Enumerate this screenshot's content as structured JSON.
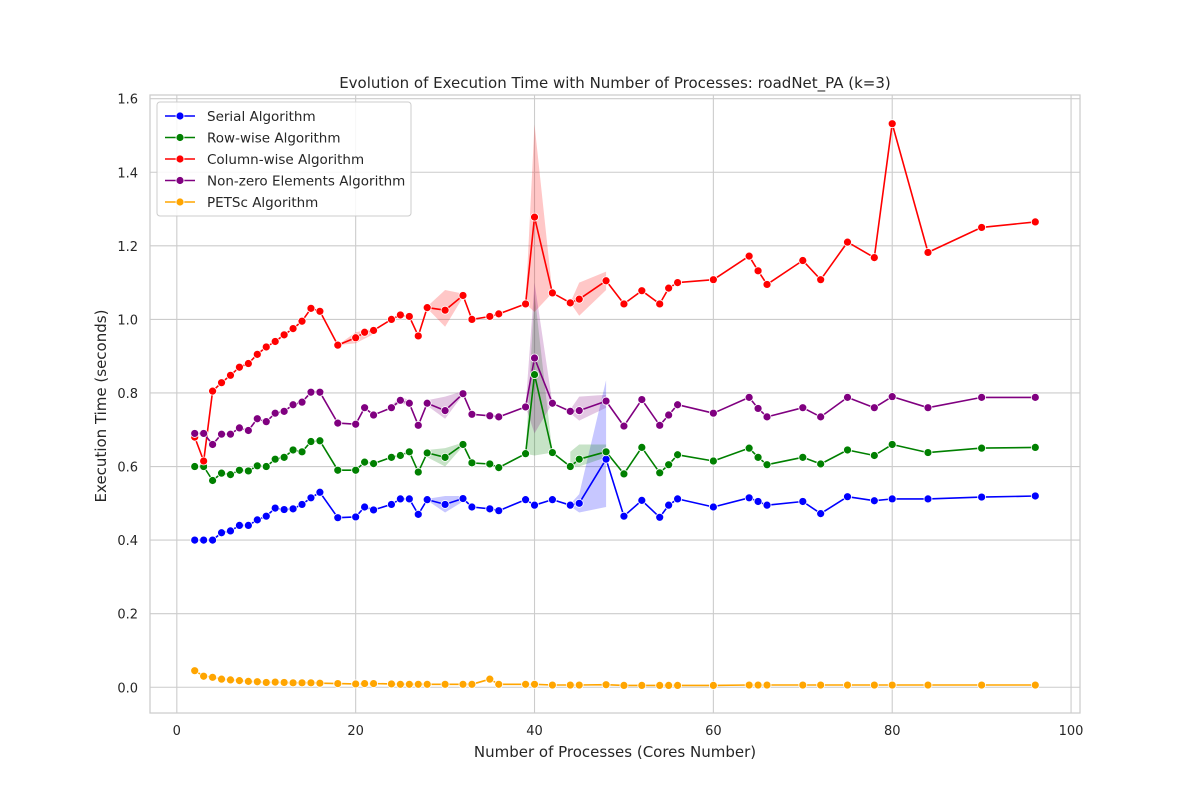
{
  "chart_data": {
    "type": "line",
    "title": "Evolution of Execution Time with Number of Processes: roadNet_PA (k=3)",
    "xlabel": "Number of Processes (Cores Number)",
    "ylabel": "Execution Time (seconds)",
    "xlim": [
      -3,
      101
    ],
    "ylim": [
      -0.07,
      1.61
    ],
    "xticks": [
      0,
      20,
      40,
      60,
      80,
      100
    ],
    "yticks": [
      0.0,
      0.2,
      0.4,
      0.6,
      0.8,
      1.0,
      1.2,
      1.4,
      1.6
    ],
    "xtick_labels": [
      "0",
      "20",
      "40",
      "60",
      "80",
      "100"
    ],
    "ytick_labels": [
      "0.0",
      "0.2",
      "0.4",
      "0.6",
      "0.8",
      "1.0",
      "1.2",
      "1.4",
      "1.6"
    ],
    "grid": true,
    "legend_position": "top-left",
    "x": [
      2,
      3,
      4,
      5,
      6,
      7,
      8,
      9,
      10,
      11,
      12,
      13,
      14,
      15,
      16,
      18,
      20,
      21,
      22,
      24,
      25,
      26,
      27,
      28,
      30,
      32,
      33,
      35,
      36,
      39,
      40,
      42,
      44,
      45,
      48,
      50,
      52,
      54,
      55,
      56,
      60,
      64,
      65,
      66,
      70,
      72,
      75,
      78,
      80,
      84,
      90,
      96
    ],
    "series": [
      {
        "name": "Serial Algorithm",
        "color": "#0000ff",
        "values": [
          0.4,
          0.4,
          0.4,
          0.42,
          0.425,
          0.44,
          0.44,
          0.455,
          0.465,
          0.487,
          0.483,
          0.485,
          0.497,
          0.515,
          0.53,
          0.461,
          0.463,
          0.49,
          0.482,
          0.497,
          0.512,
          0.512,
          0.47,
          0.51,
          0.497,
          0.513,
          0.49,
          0.485,
          0.48,
          0.51,
          0.495,
          0.51,
          0.495,
          0.5,
          0.62,
          0.465,
          0.508,
          0.462,
          0.495,
          0.512,
          0.49,
          0.515,
          0.505,
          0.495,
          0.505,
          0.472,
          0.518,
          0.507,
          0.512,
          0.512,
          0.517,
          0.52
        ],
        "bands": [
          {
            "x": [
              28,
              30,
              32
            ],
            "lower": [
              0.508,
              0.475,
              0.505
            ],
            "upper": [
              0.512,
              0.52,
              0.52
            ]
          },
          {
            "x": [
              44,
              45,
              48
            ],
            "lower": [
              0.492,
              0.475,
              0.49
            ],
            "upper": [
              0.498,
              0.525,
              0.835
            ]
          }
        ]
      },
      {
        "name": "Row-wise Algorithm",
        "color": "#008000",
        "values": [
          0.6,
          0.6,
          0.562,
          0.582,
          0.578,
          0.59,
          0.588,
          0.602,
          0.6,
          0.62,
          0.625,
          0.645,
          0.64,
          0.668,
          0.67,
          0.59,
          0.59,
          0.612,
          0.608,
          0.625,
          0.63,
          0.64,
          0.585,
          0.637,
          0.625,
          0.66,
          0.61,
          0.607,
          0.597,
          0.635,
          0.85,
          0.638,
          0.6,
          0.62,
          0.64,
          0.58,
          0.652,
          0.583,
          0.605,
          0.632,
          0.615,
          0.65,
          0.625,
          0.605,
          0.625,
          0.607,
          0.645,
          0.63,
          0.66,
          0.638,
          0.65,
          0.652
        ],
        "bands": [
          {
            "x": [
              28,
              30,
              32
            ],
            "lower": [
              0.625,
              0.6,
              0.655
            ],
            "upper": [
              0.645,
              0.65,
              0.665
            ]
          },
          {
            "x": [
              39,
              40,
              42
            ],
            "lower": [
              0.635,
              0.63,
              0.638
            ],
            "upper": [
              0.635,
              1.07,
              0.638
            ]
          },
          {
            "x": [
              44,
              45,
              48
            ],
            "lower": [
              0.6,
              0.6,
              0.625
            ],
            "upper": [
              0.64,
              0.66,
              0.66
            ]
          }
        ]
      },
      {
        "name": "Column-wise Algorithm",
        "color": "#ff0000",
        "values": [
          0.68,
          0.615,
          0.805,
          0.828,
          0.848,
          0.87,
          0.88,
          0.905,
          0.925,
          0.94,
          0.958,
          0.975,
          0.995,
          1.03,
          1.022,
          0.93,
          0.95,
          0.965,
          0.97,
          1.0,
          1.012,
          1.008,
          0.955,
          1.032,
          1.025,
          1.065,
          1.0,
          1.008,
          1.015,
          1.042,
          1.278,
          1.072,
          1.045,
          1.055,
          1.105,
          1.042,
          1.078,
          1.042,
          1.085,
          1.1,
          1.108,
          1.172,
          1.132,
          1.095,
          1.16,
          1.108,
          1.21,
          1.168,
          1.532,
          1.182,
          1.25,
          1.265
        ],
        "bands": [
          {
            "x": [
              18,
              20,
              22
            ],
            "lower": [
              0.93,
              0.935,
              0.96
            ],
            "upper": [
              0.93,
              0.965,
              0.975
            ]
          },
          {
            "x": [
              28,
              30,
              32
            ],
            "lower": [
              1.03,
              0.98,
              1.06
            ],
            "upper": [
              1.035,
              1.08,
              1.07
            ]
          },
          {
            "x": [
              39,
              40,
              42
            ],
            "lower": [
              1.042,
              1.02,
              1.072
            ],
            "upper": [
              1.042,
              1.53,
              1.072
            ]
          },
          {
            "x": [
              44,
              45,
              48
            ],
            "lower": [
              1.045,
              1.01,
              1.08
            ],
            "upper": [
              1.045,
              1.1,
              1.13
            ]
          }
        ]
      },
      {
        "name": "Non-zero Elements Algorithm",
        "color": "#800080",
        "values": [
          0.69,
          0.69,
          0.66,
          0.688,
          0.688,
          0.705,
          0.698,
          0.73,
          0.722,
          0.745,
          0.75,
          0.768,
          0.775,
          0.802,
          0.802,
          0.718,
          0.715,
          0.76,
          0.74,
          0.76,
          0.78,
          0.772,
          0.712,
          0.772,
          0.752,
          0.798,
          0.742,
          0.738,
          0.735,
          0.762,
          0.895,
          0.772,
          0.75,
          0.752,
          0.778,
          0.71,
          0.782,
          0.712,
          0.74,
          0.768,
          0.745,
          0.788,
          0.758,
          0.735,
          0.76,
          0.735,
          0.788,
          0.76,
          0.79,
          0.76,
          0.788,
          0.788
        ],
        "bands": [
          {
            "x": [
              24,
              25,
              26
            ],
            "lower": [
              0.76,
              0.772,
              0.765
            ],
            "upper": [
              0.765,
              0.79,
              0.78
            ]
          },
          {
            "x": [
              28,
              30,
              32
            ],
            "lower": [
              0.765,
              0.73,
              0.795
            ],
            "upper": [
              0.78,
              0.79,
              0.805
            ]
          },
          {
            "x": [
              39,
              40,
              42
            ],
            "lower": [
              0.762,
              0.69,
              0.772
            ],
            "upper": [
              0.762,
              1.1,
              0.772
            ]
          },
          {
            "x": [
              44,
              45,
              48
            ],
            "lower": [
              0.745,
              0.725,
              0.76
            ],
            "upper": [
              0.755,
              0.79,
              0.795
            ]
          }
        ]
      },
      {
        "name": "PETSc Algorithm",
        "color": "#ffa500",
        "values": [
          0.045,
          0.03,
          0.027,
          0.022,
          0.02,
          0.018,
          0.016,
          0.015,
          0.013,
          0.014,
          0.013,
          0.012,
          0.012,
          0.012,
          0.011,
          0.01,
          0.009,
          0.01,
          0.01,
          0.009,
          0.008,
          0.008,
          0.008,
          0.008,
          0.008,
          0.008,
          0.008,
          0.022,
          0.008,
          0.008,
          0.008,
          0.006,
          0.006,
          0.006,
          0.007,
          0.005,
          0.005,
          0.005,
          0.005,
          0.005,
          0.005,
          0.006,
          0.006,
          0.006,
          0.006,
          0.006,
          0.006,
          0.006,
          0.006,
          0.006,
          0.006,
          0.006
        ],
        "bands": []
      }
    ]
  }
}
